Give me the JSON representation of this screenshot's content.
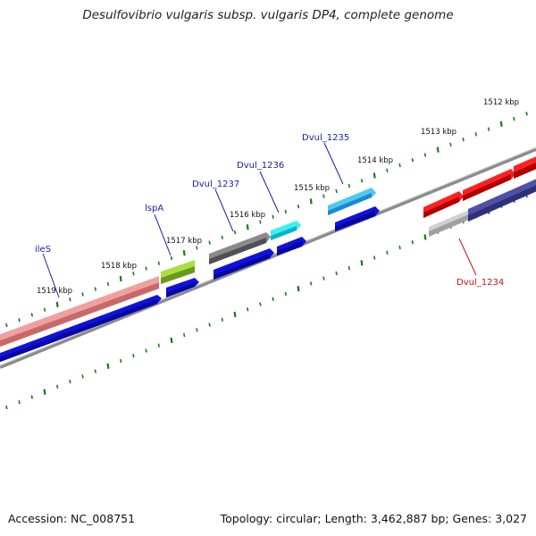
{
  "title": "Desulfovibrio vulgaris subsp. vulgaris DP4, complete genome",
  "footer": {
    "accession": "Accession: NC_008751",
    "summary": "Topology: circular; Length: 3,462,887 bp; Genes: 3,027"
  },
  "colors": {
    "backbone": "#888888",
    "tick": "#1a7a1a",
    "label_blue": "#1a1aa8",
    "label_red": "#cc1111",
    "cds_blue": "#1010e0"
  },
  "ticks": [
    {
      "label": "1519 kbp"
    },
    {
      "label": "1518 kbp"
    },
    {
      "label": "1517 kbp"
    },
    {
      "label": "1516 kbp"
    },
    {
      "label": "1515 kbp"
    },
    {
      "label": "1514 kbp"
    },
    {
      "label": "1513 kbp"
    },
    {
      "label": "1512 kbp"
    }
  ],
  "genes": [
    {
      "name": "ileS",
      "label_color": "#1a1aa8"
    },
    {
      "name": "lspA",
      "label_color": "#1a1aa8"
    },
    {
      "name": "Dvul_1237",
      "label_color": "#1a1aa8"
    },
    {
      "name": "Dvul_1236",
      "label_color": "#1a1aa8"
    },
    {
      "name": "Dvul_1235",
      "label_color": "#1a1aa8"
    },
    {
      "name": "Dvul_1234",
      "label_color": "#cc1111"
    }
  ]
}
